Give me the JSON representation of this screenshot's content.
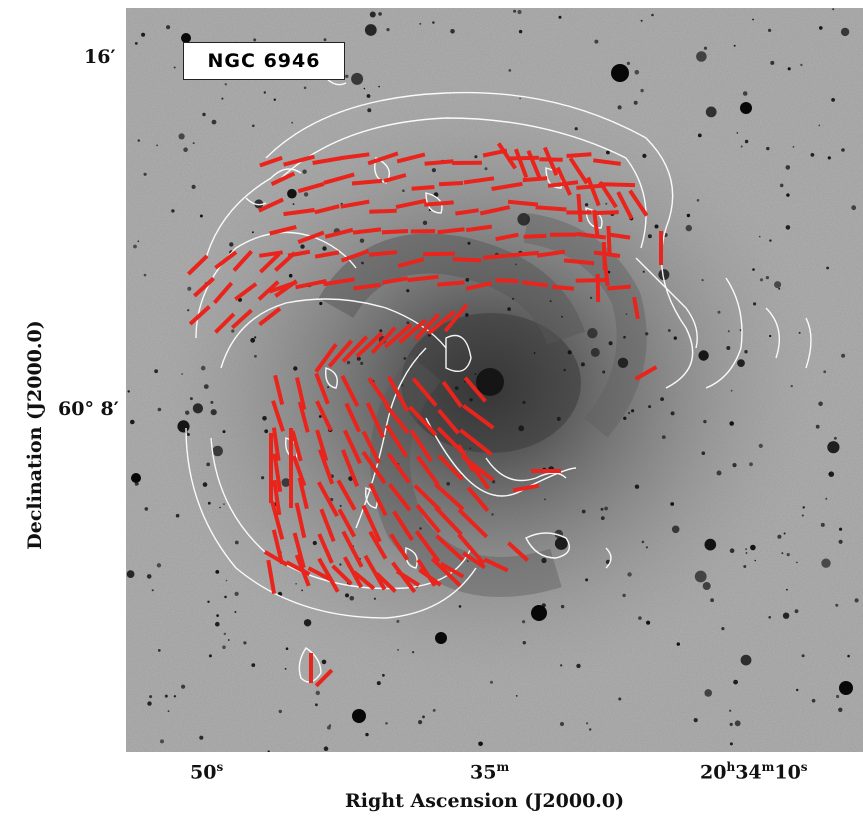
{
  "figure": {
    "object_label": "NGC 6946",
    "x_axis": {
      "label": "Right Ascension (J2000.0)",
      "ticks": [
        {
          "main": "50",
          "sup": "s"
        },
        {
          "main": "35",
          "sup": "m"
        },
        {
          "main": "20",
          "sup_h": "h",
          "mid": "34",
          "sup_m": "m",
          "end": "10",
          "sup_s": "s"
        }
      ]
    },
    "y_axis": {
      "label": "Declination (J2000.0)",
      "ticks": [
        "16′",
        "60° 8′"
      ]
    },
    "colors": {
      "vectors": "#e8241c",
      "contours": "#ffffff",
      "background": "#9a9a9a"
    }
  }
}
